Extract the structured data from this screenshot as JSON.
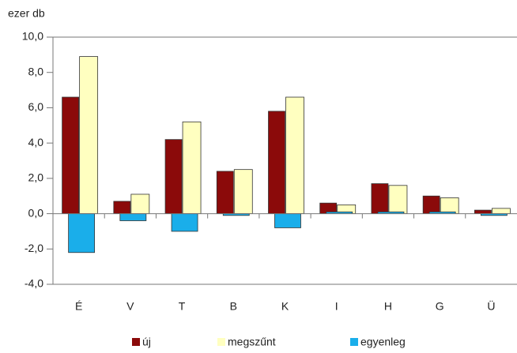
{
  "chart_data": {
    "type": "bar",
    "y_unit": "ezer db",
    "categories": [
      "É",
      "V",
      "T",
      "B",
      "K",
      "I",
      "H",
      "G",
      "Ü"
    ],
    "series": [
      {
        "name": "új",
        "color": "#8b0a0a",
        "values": [
          6.6,
          0.7,
          4.2,
          2.4,
          5.8,
          0.6,
          1.7,
          1.0,
          0.2
        ]
      },
      {
        "name": "megszűnt",
        "color": "#ffffc0",
        "values": [
          8.9,
          1.1,
          5.2,
          2.5,
          6.6,
          0.5,
          1.6,
          0.9,
          0.3
        ]
      },
      {
        "name": "egyenleg",
        "color": "#1aaeea",
        "values": [
          -2.2,
          -0.4,
          -1.0,
          -0.1,
          -0.8,
          0.1,
          0.1,
          0.1,
          -0.1
        ]
      }
    ],
    "ylim": [
      -4,
      10
    ],
    "yticks": [
      {
        "value": -4,
        "label": "-4,0"
      },
      {
        "value": -2,
        "label": "-2,0"
      },
      {
        "value": 0,
        "label": "0,0"
      },
      {
        "value": 2,
        "label": "2,0"
      },
      {
        "value": 4,
        "label": "4,0"
      },
      {
        "value": 6,
        "label": "6,0"
      },
      {
        "value": 8,
        "label": "8,0"
      },
      {
        "value": 10,
        "label": "10,0"
      }
    ],
    "grid": false,
    "legend": "bottom"
  }
}
